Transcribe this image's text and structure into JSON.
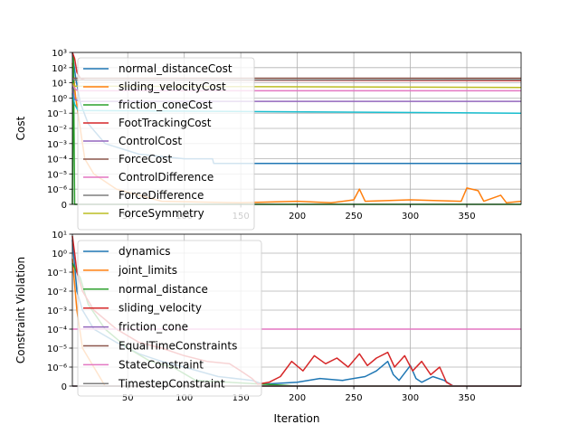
{
  "chart_data": [
    {
      "type": "line",
      "ylabel": "Cost",
      "xlabel": "",
      "yscale": "symlog",
      "linthresh": 1e-06,
      "xlim": [
        1,
        398
      ],
      "ylim": [
        0,
        1000
      ],
      "grid": true,
      "legend": "upper-left",
      "x_ticks": [
        {
          "v": 50,
          "label": "50"
        },
        {
          "v": 100,
          "label": "100"
        },
        {
          "v": 150,
          "label": "150"
        },
        {
          "v": 200,
          "label": "200"
        },
        {
          "v": 250,
          "label": "250"
        },
        {
          "v": 300,
          "label": "300"
        },
        {
          "v": 350,
          "label": "350"
        }
      ],
      "y_ticks": [
        {
          "v": 0,
          "label": "0"
        },
        {
          "v": 1e-06,
          "label": "10⁻⁶"
        },
        {
          "v": 1e-05,
          "label": "10⁻⁵"
        },
        {
          "v": 0.0001,
          "label": "10⁻⁴"
        },
        {
          "v": 0.001,
          "label": "10⁻³"
        },
        {
          "v": 0.01,
          "label": "10⁻²"
        },
        {
          "v": 0.1,
          "label": "10⁻¹"
        },
        {
          "v": 1,
          "label": "10⁰"
        },
        {
          "v": 10,
          "label": "10¹"
        },
        {
          "v": 100,
          "label": "10²"
        },
        {
          "v": 1000,
          "label": "10³"
        }
      ],
      "series": [
        {
          "name": "normal_distanceCost",
          "color": "#1f77b4",
          "values": [
            [
              1,
              1000
            ],
            [
              4,
              20
            ],
            [
              8,
              0.5
            ],
            [
              15,
              0.02
            ],
            [
              30,
              0.001
            ],
            [
              60,
              0.0002
            ],
            [
              100,
              0.0001
            ],
            [
              125,
              0.0001
            ],
            [
              126,
              5e-05
            ],
            [
              128,
              5e-05
            ],
            [
              398,
              5e-05
            ]
          ]
        },
        {
          "name": "sliding_velocityCost",
          "color": "#ff7f0e",
          "values": [
            [
              1,
              200
            ],
            [
              4,
              1
            ],
            [
              8,
              0.01
            ],
            [
              12,
              0.0001
            ],
            [
              20,
              1e-05
            ],
            [
              40,
              1e-06
            ],
            [
              80,
              2e-07
            ],
            [
              150,
              1e-07
            ],
            [
              200,
              2e-07
            ],
            [
              230,
              1e-07
            ],
            [
              250,
              3e-07
            ],
            [
              255,
              1e-06
            ],
            [
              260,
              2e-07
            ],
            [
              300,
              3e-07
            ],
            [
              345,
              2e-07
            ],
            [
              350,
              1.2e-06
            ],
            [
              360,
              9e-07
            ],
            [
              365,
              2e-07
            ],
            [
              380,
              6e-07
            ],
            [
              385,
              1e-07
            ],
            [
              398,
              2e-07
            ]
          ]
        },
        {
          "name": "friction_coneCost",
          "color": "#2ca02c",
          "values": [
            [
              1,
              0
            ],
            [
              2,
              500
            ],
            [
              3,
              0
            ],
            [
              398,
              0
            ]
          ]
        },
        {
          "name": "FootTrackingCost",
          "color": "#d62728",
          "values": [
            [
              1,
              1000
            ],
            [
              3,
              400
            ],
            [
              5,
              50
            ],
            [
              8,
              20
            ],
            [
              12,
              15
            ],
            [
              398,
              14
            ]
          ]
        },
        {
          "name": "ControlCost",
          "color": "#9467bd",
          "values": [
            [
              1,
              5
            ],
            [
              3,
              0.8
            ],
            [
              8,
              0.6
            ],
            [
              398,
              0.6
            ]
          ]
        },
        {
          "name": "ForceCost",
          "color": "#8c564b",
          "values": [
            [
              1,
              20
            ],
            [
              398,
              20
            ]
          ]
        },
        {
          "name": "ControlDifference",
          "color": "#e377c2",
          "values": [
            [
              1,
              10
            ],
            [
              3,
              4
            ],
            [
              6,
              3
            ],
            [
              398,
              3
            ]
          ]
        },
        {
          "name": "ForceDifference",
          "color": "#7f7f7f",
          "values": [
            [
              1,
              20
            ],
            [
              3,
              15
            ],
            [
              398,
              16
            ]
          ]
        },
        {
          "name": "ForceSymmetry",
          "color": "#bcbd22",
          "values": [
            [
              1,
              10
            ],
            [
              3,
              6
            ],
            [
              398,
              5
            ]
          ]
        },
        {
          "name": "",
          "color": "#17becf",
          "values": [
            [
              1,
              2
            ],
            [
              3,
              0.4
            ],
            [
              6,
              0.15
            ],
            [
              398,
              0.1
            ]
          ]
        }
      ]
    },
    {
      "type": "line",
      "ylabel": "Constraint Violation",
      "xlabel": "Iteration",
      "yscale": "symlog",
      "linthresh": 1e-06,
      "xlim": [
        1,
        398
      ],
      "ylim": [
        0,
        10
      ],
      "grid": true,
      "legend": "upper-left",
      "x_ticks": [
        {
          "v": 50,
          "label": "50"
        },
        {
          "v": 100,
          "label": "100"
        },
        {
          "v": 150,
          "label": "150"
        },
        {
          "v": 200,
          "label": "200"
        },
        {
          "v": 250,
          "label": "250"
        },
        {
          "v": 300,
          "label": "300"
        },
        {
          "v": 350,
          "label": "350"
        }
      ],
      "y_ticks": [
        {
          "v": 0,
          "label": "0"
        },
        {
          "v": 1e-06,
          "label": "10⁻⁶"
        },
        {
          "v": 1e-05,
          "label": "10⁻⁵"
        },
        {
          "v": 0.0001,
          "label": "10⁻⁴"
        },
        {
          "v": 0.001,
          "label": "10⁻³"
        },
        {
          "v": 0.01,
          "label": "10⁻²"
        },
        {
          "v": 0.1,
          "label": "10⁻¹"
        },
        {
          "v": 1,
          "label": "10⁰"
        },
        {
          "v": 10,
          "label": "10¹"
        }
      ],
      "series": [
        {
          "name": "dynamics",
          "color": "#1f77b4",
          "values": [
            [
              1,
              5
            ],
            [
              5,
              0.01
            ],
            [
              10,
              0.001
            ],
            [
              20,
              0.0001
            ],
            [
              40,
              2e-05
            ],
            [
              60,
              5e-06
            ],
            [
              80,
              2e-06
            ],
            [
              100,
              1e-06
            ],
            [
              130,
              5e-07
            ],
            [
              160,
              3e-07
            ],
            [
              170,
              1e-07
            ],
            [
              200,
              2e-07
            ],
            [
              220,
              4e-07
            ],
            [
              240,
              3e-07
            ],
            [
              260,
              5e-07
            ],
            [
              270,
              8e-07
            ],
            [
              280,
              2e-06
            ],
            [
              285,
              6e-07
            ],
            [
              290,
              3e-07
            ],
            [
              300,
              1.2e-06
            ],
            [
              305,
              4e-07
            ],
            [
              310,
              2e-07
            ],
            [
              320,
              5e-07
            ],
            [
              330,
              3e-07
            ],
            [
              338,
              0
            ],
            [
              398,
              0
            ]
          ]
        },
        {
          "name": "joint_limits",
          "color": "#ff7f0e",
          "values": [
            [
              1,
              0.5
            ],
            [
              5,
              0.001
            ],
            [
              10,
              1e-05
            ],
            [
              20,
              1e-06
            ],
            [
              30,
              0
            ],
            [
              398,
              0
            ]
          ]
        },
        {
          "name": "normal_distance",
          "color": "#2ca02c",
          "values": [
            [
              1,
              0.3
            ],
            [
              5,
              0.1
            ],
            [
              8,
              0.05
            ],
            [
              15,
              0.002
            ],
            [
              30,
              0.0001
            ],
            [
              50,
              1e-05
            ],
            [
              70,
              2e-06
            ],
            [
              90,
              1e-06
            ],
            [
              110,
              3e-07
            ],
            [
              140,
              2e-07
            ],
            [
              170,
              1e-07
            ],
            [
              200,
              0
            ],
            [
              398,
              0
            ]
          ]
        },
        {
          "name": "sliding_velocity",
          "color": "#d62728",
          "values": [
            [
              1,
              8
            ],
            [
              3,
              1
            ],
            [
              5,
              0.1
            ],
            [
              10,
              0.01
            ],
            [
              20,
              0.001
            ],
            [
              40,
              0.0001
            ],
            [
              60,
              2e-05
            ],
            [
              80,
              1e-05
            ],
            [
              100,
              4e-06
            ],
            [
              120,
              2e-06
            ],
            [
              140,
              1.5e-06
            ],
            [
              150,
              8e-07
            ],
            [
              160,
              4e-07
            ],
            [
              165,
              1e-07
            ],
            [
              175,
              2e-07
            ],
            [
              185,
              5e-07
            ],
            [
              195,
              2e-06
            ],
            [
              205,
              8e-07
            ],
            [
              215,
              4e-06
            ],
            [
              225,
              1.5e-06
            ],
            [
              235,
              3e-06
            ],
            [
              245,
              1e-06
            ],
            [
              255,
              5e-06
            ],
            [
              262,
              1.2e-06
            ],
            [
              270,
              3e-06
            ],
            [
              280,
              6e-06
            ],
            [
              286,
              1e-06
            ],
            [
              295,
              4e-06
            ],
            [
              302,
              8e-07
            ],
            [
              310,
              2e-06
            ],
            [
              318,
              6e-07
            ],
            [
              326,
              1e-06
            ],
            [
              332,
              2e-07
            ],
            [
              338,
              0
            ],
            [
              398,
              0
            ]
          ]
        },
        {
          "name": "friction_cone",
          "color": "#9467bd",
          "values": [
            [
              1,
              0
            ],
            [
              398,
              0
            ]
          ]
        },
        {
          "name": "EqualTimeConstraints",
          "color": "#8c564b",
          "values": [
            [
              1,
              0
            ],
            [
              398,
              0
            ]
          ]
        },
        {
          "name": "StateConstraint",
          "color": "#e377c2",
          "values": [
            [
              1,
              0.0001
            ],
            [
              398,
              0.0001
            ]
          ]
        },
        {
          "name": "TimestepConstraint",
          "color": "#7f7f7f",
          "values": [
            [
              1,
              0
            ],
            [
              398,
              0
            ]
          ]
        }
      ]
    }
  ]
}
